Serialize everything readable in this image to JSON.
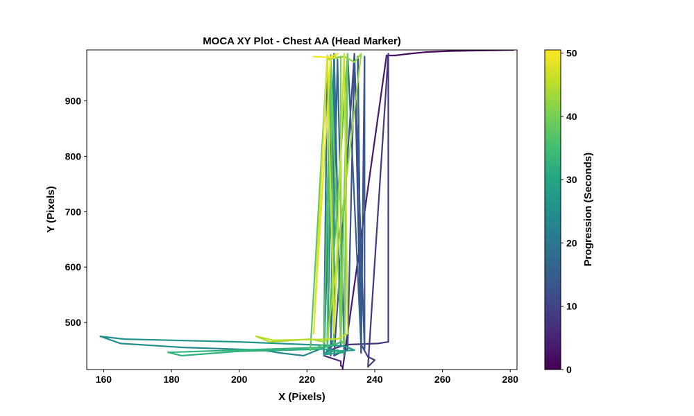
{
  "chart_data": {
    "type": "line",
    "title": "MOCA XY Plot - Chest AA (Head Marker)",
    "xlabel": "X (Pixels)",
    "ylabel": "Y (Pixels)",
    "xlim": [
      155,
      282
    ],
    "ylim": [
      415,
      992
    ],
    "xticks": [
      160,
      180,
      200,
      220,
      240,
      260,
      280
    ],
    "yticks": [
      500,
      600,
      700,
      800,
      900
    ],
    "grid": false,
    "colorbar": {
      "label": "Progression (Seconds)",
      "range": [
        0,
        50.5
      ],
      "ticks": [
        0,
        10,
        20,
        30,
        40,
        50
      ],
      "colormap": "viridis"
    },
    "series": [
      {
        "x": [
          281,
          272,
          262,
          255,
          250,
          246,
          245,
          243.5,
          230.5,
          230.5,
          230,
          230,
          225,
          226,
          229,
          232,
          241,
          244,
          244,
          238,
          240,
          238,
          236,
          235,
          236,
          234,
          228,
          232,
          234,
          237,
          237,
          236,
          235,
          236,
          232,
          231,
          229,
          227,
          228,
          230,
          228,
          225,
          226,
          225,
          227,
          226,
          228,
          228,
          225,
          228,
          219,
          212,
          207,
          183,
          165,
          159,
          166,
          200,
          220,
          230,
          232,
          234,
          229,
          231,
          225,
          226,
          229,
          231,
          225,
          214,
          200,
          183,
          179,
          225,
          228,
          229,
          230,
          232,
          226,
          227,
          225,
          221,
          226,
          228,
          227,
          230,
          231,
          232,
          230,
          230,
          226,
          231,
          234,
          236,
          226,
          225,
          221,
          209,
          205,
          210,
          229,
          232,
          231,
          228,
          226,
          222,
          222,
          227,
          229,
          228,
          222,
          222
        ],
        "y": [
          992,
          991,
          990,
          988,
          985,
          982,
          982,
          982,
          415,
          420,
          422,
          430,
          440,
          448,
          455,
          460,
          462,
          465,
          985,
          420,
          432,
          438,
          460,
          980,
          445,
          985,
          440,
          452,
          980,
          452,
          980,
          445,
          975,
          455,
          985,
          440,
          975,
          440,
          985,
          458,
          978,
          440,
          980,
          445,
          980,
          455,
          985,
          470,
          440,
          462,
          440,
          445,
          450,
          455,
          462,
          475,
          470,
          465,
          460,
          458,
          455,
          450,
          448,
          446,
          442,
          445,
          450,
          446,
          452,
          450,
          448,
          440,
          446,
          455,
          460,
          462,
          465,
          985,
          455,
          983,
          460,
          450,
          980,
          462,
          980,
          468,
          460,
          985,
          470,
          980,
          975,
          980,
          970,
          985,
          470,
          465,
          470,
          465,
          475,
          468,
          470,
          480,
          985,
          480,
          982,
          480,
          485,
          980,
          985,
          978,
          980,
          980
        ],
        "t_range": [
          0,
          50.5
        ]
      }
    ]
  }
}
